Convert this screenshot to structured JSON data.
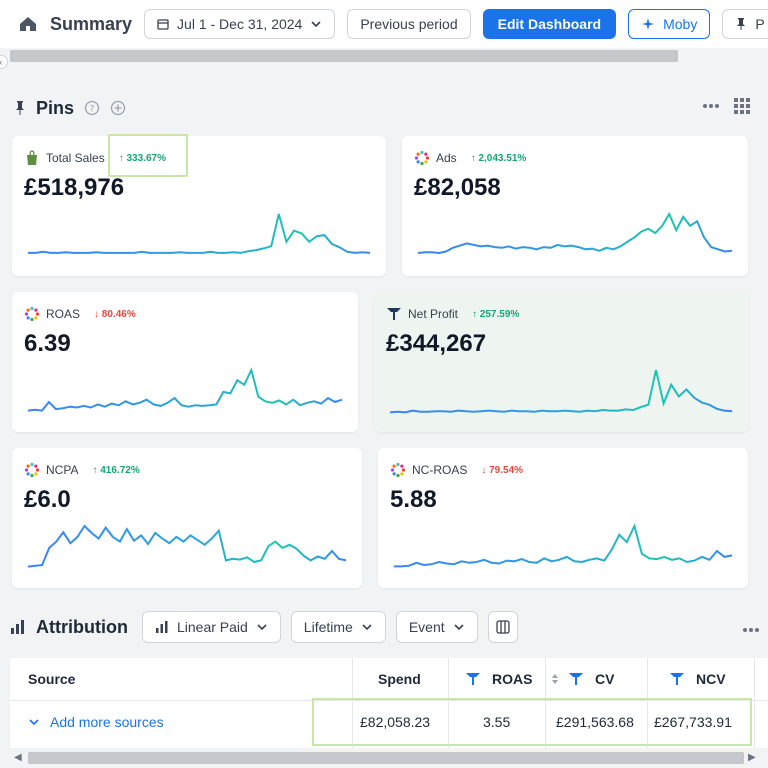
{
  "header": {
    "title": "Summary",
    "date_range": "Jul 1 - Dec 31, 2024",
    "previous_period": "Previous period",
    "edit_dashboard": "Edit Dashboard",
    "moby": "Moby",
    "pin_label": "P"
  },
  "pins": {
    "title": "Pins",
    "cards": [
      {
        "name": "Total Sales",
        "delta": "333.67%",
        "direction": "up",
        "value": "£518,976",
        "icon": "shopify-bag-icon",
        "series": [
          2,
          2,
          2.2,
          2,
          2,
          2.1,
          2,
          2,
          2,
          2.1,
          2,
          2,
          2,
          2,
          2,
          2.2,
          2,
          2,
          2,
          2,
          2.1,
          2,
          2,
          2,
          2.2,
          2,
          2,
          2.1,
          2,
          2.3,
          2.5,
          2.8,
          3.2,
          9,
          4,
          6,
          5.5,
          4,
          5,
          5.2,
          3.6,
          3,
          2.2,
          2,
          2.1,
          2
        ]
      },
      {
        "name": "Ads",
        "delta": "2,043.51%",
        "direction": "up",
        "value": "£82,058",
        "icon": "multicolor-dots-icon",
        "series": [
          1.5,
          1.6,
          1.6,
          1.5,
          1.7,
          2.2,
          2.5,
          2.8,
          2.6,
          2.4,
          2.5,
          2.3,
          2.2,
          2.4,
          2.1,
          2.3,
          2.2,
          2.0,
          2.3,
          2.2,
          2.6,
          2.4,
          2.5,
          2.3,
          2.0,
          2.1,
          1.8,
          2.2,
          2.0,
          2.4,
          3.0,
          3.6,
          4.4,
          4.8,
          4.2,
          5.2,
          6.8,
          4.6,
          6.4,
          5.2,
          5.8,
          3.6,
          2.3,
          2.0,
          1.7,
          1.8
        ]
      },
      {
        "name": "ROAS",
        "delta": "80.46%",
        "direction": "down",
        "value": "6.39",
        "icon": "multicolor-dots-icon",
        "series": [
          1.2,
          1.3,
          1.2,
          2.3,
          1.4,
          1.5,
          1.7,
          1.6,
          1.8,
          1.6,
          2.0,
          1.7,
          2.1,
          1.9,
          2.4,
          2.0,
          2.2,
          2.6,
          2.0,
          1.8,
          2.2,
          2.8,
          1.9,
          1.7,
          1.9,
          1.8,
          1.9,
          2.0,
          3.6,
          3.4,
          5.1,
          4.5,
          6.4,
          3.0,
          2.4,
          2.2,
          2.5,
          2.0,
          2.6,
          1.9,
          2.2,
          2.4,
          2.1,
          2.8,
          2.3,
          2.6
        ]
      },
      {
        "name": "Net Profit",
        "delta": "257.59%",
        "direction": "up",
        "value": "£344,267",
        "icon": "triple-whale-icon",
        "series": [
          1.3,
          1.4,
          1.3,
          1.6,
          1.4,
          1.4,
          1.5,
          1.5,
          1.4,
          1.6,
          1.5,
          1.4,
          1.5,
          1.6,
          1.5,
          1.4,
          1.6,
          1.5,
          1.5,
          1.4,
          1.6,
          1.5,
          1.5,
          1.6,
          1.5,
          1.4,
          1.6,
          1.5,
          1.7,
          1.6,
          1.6,
          1.8,
          1.7,
          2.2,
          2.6,
          8.5,
          2.8,
          6.0,
          4.0,
          5.2,
          3.8,
          3.0,
          2.6,
          1.9,
          1.6,
          1.5
        ]
      },
      {
        "name": "NCPA",
        "delta": "416.72%",
        "direction": "up",
        "value": "£6.0",
        "icon": "multicolor-dots-icon",
        "series": [
          1.2,
          1.3,
          1.4,
          3.6,
          4.4,
          5.6,
          4.2,
          5.0,
          6.4,
          5.5,
          4.8,
          6.2,
          5.0,
          4.4,
          6.0,
          4.5,
          5.2,
          4.1,
          5.5,
          4.8,
          4.2,
          5.0,
          4.4,
          5.2,
          4.6,
          4.0,
          4.8,
          5.8,
          2.0,
          2.2,
          2.1,
          2.4,
          1.8,
          2.0,
          3.8,
          4.4,
          3.6,
          4.0,
          3.5,
          2.6,
          2.0,
          2.5,
          2.2,
          3.2,
          2.2,
          2.0
        ]
      },
      {
        "name": "NC-ROAS",
        "delta": "79.54%",
        "direction": "down",
        "value": "5.88",
        "icon": "multicolor-dots-icon",
        "series": [
          1.3,
          1.3,
          1.4,
          1.8,
          1.5,
          1.6,
          1.9,
          1.7,
          1.6,
          2.0,
          1.8,
          1.9,
          2.2,
          1.8,
          1.7,
          2.1,
          2.0,
          2.3,
          1.9,
          1.8,
          2.4,
          2.0,
          2.2,
          2.6,
          2.0,
          1.9,
          2.2,
          2.4,
          2.1,
          3.6,
          5.6,
          4.6,
          6.8,
          3.0,
          2.4,
          2.3,
          2.6,
          2.2,
          2.4,
          1.9,
          2.1,
          2.6,
          2.2,
          3.4,
          2.6,
          2.8
        ]
      }
    ]
  },
  "attribution": {
    "title": "Attribution",
    "model": "Linear Paid",
    "window": "Lifetime",
    "date_type": "Event"
  },
  "table": {
    "columns": {
      "source": "Source",
      "spend": "Spend",
      "roas": "ROAS",
      "cv": "CV",
      "ncv": "NCV"
    },
    "add_sources": "Add more sources",
    "values": {
      "spend": "£82,058.23",
      "roas": "3.55",
      "cv": "£291,563.68",
      "ncv": "£267,733.91"
    }
  },
  "colors": {
    "accent": "#1a73e8",
    "up": "#16a37a",
    "down": "#dc4b3c",
    "line_start": "#3b82f6",
    "line_end": "#1cc7b0",
    "highlight": "#c7e6a8"
  }
}
